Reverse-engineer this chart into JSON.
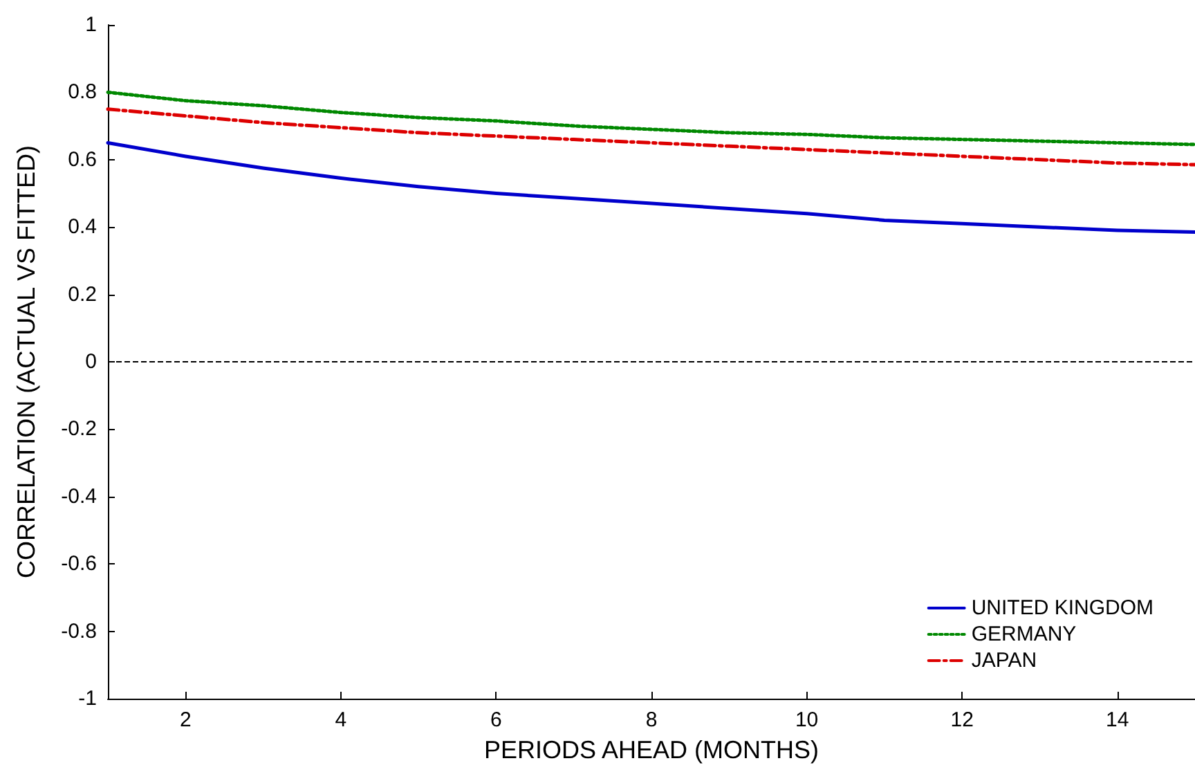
{
  "chart_data": {
    "type": "line",
    "xlabel": "PERIODS AHEAD (MONTHS)",
    "ylabel": "CORRELATION (ACTUAL VS FITTED)",
    "x": [
      1,
      2,
      3,
      4,
      5,
      6,
      7,
      8,
      9,
      10,
      11,
      12,
      13,
      14,
      15
    ],
    "series": [
      {
        "name": "UNITED KINGDOM",
        "color": "#0000cc",
        "line_style": "solid",
        "values": [
          0.65,
          0.61,
          0.575,
          0.545,
          0.52,
          0.5,
          0.485,
          0.47,
          0.455,
          0.44,
          0.42,
          0.41,
          0.4,
          0.39,
          0.385
        ]
      },
      {
        "name": "GERMANY",
        "color": "#008800",
        "line_style": "dotted",
        "values": [
          0.8,
          0.775,
          0.76,
          0.74,
          0.725,
          0.715,
          0.7,
          0.69,
          0.68,
          0.675,
          0.665,
          0.66,
          0.655,
          0.65,
          0.645
        ]
      },
      {
        "name": "JAPAN",
        "color": "#dd0000",
        "line_style": "dashed",
        "values": [
          0.75,
          0.73,
          0.71,
          0.695,
          0.68,
          0.67,
          0.66,
          0.65,
          0.64,
          0.63,
          0.62,
          0.61,
          0.6,
          0.59,
          0.585
        ]
      }
    ],
    "xlim": [
      1,
      15
    ],
    "xticks": [
      2,
      4,
      6,
      8,
      10,
      12,
      14
    ],
    "ylim": [
      -1,
      1
    ],
    "yticks": [
      -1,
      -0.8,
      -0.6,
      -0.4,
      -0.2,
      0,
      0.2,
      0.4,
      0.6,
      0.8,
      1
    ],
    "ref_lines": [
      {
        "axis": "y",
        "value": 0,
        "color": "#000000",
        "line_style": "dashed"
      }
    ],
    "legend": "bottom right",
    "grid": false,
    "marker": "none"
  }
}
